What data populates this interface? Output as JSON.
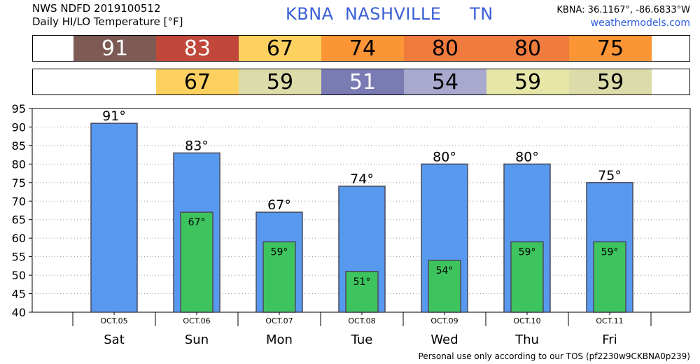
{
  "header": {
    "line1": "NWS NDFD 2019100512",
    "line2": "Daily HI/LO Temperature [°F]",
    "station": "KBNA  NASHVILLE     TN",
    "coords": "KBNA: 36.1167°, -86.6833°W",
    "site": "weathermodels.com"
  },
  "footer": "Personal use only according to our TOS (pf2230w9CKBNA0p239)",
  "hi_strip": [
    {
      "value": "91",
      "color": "#7e5a54"
    },
    {
      "value": "83",
      "color": "#c0473a"
    },
    {
      "value": "67",
      "color": "#fdd160"
    },
    {
      "value": "74",
      "color": "#fb9536"
    },
    {
      "value": "80",
      "color": "#f07b3e"
    },
    {
      "value": "80",
      "color": "#f07b3e"
    },
    {
      "value": "75",
      "color": "#fb9536"
    }
  ],
  "lo_strip": [
    {
      "value": "",
      "color": "#ffffff"
    },
    {
      "value": "67",
      "color": "#fdd160"
    },
    {
      "value": "59",
      "color": "#dcdcaa"
    },
    {
      "value": "51",
      "color": "#7a7bb2"
    },
    {
      "value": "54",
      "color": "#a9a9cf"
    },
    {
      "value": "59",
      "color": "#e6e6a8"
    },
    {
      "value": "59",
      "color": "#dcdcaa"
    }
  ],
  "chart_data": {
    "type": "bar",
    "categories": [
      "Sat",
      "Sun",
      "Mon",
      "Tue",
      "Wed",
      "Thu",
      "Fri"
    ],
    "dates": [
      "OCT.05",
      "OCT.06",
      "OCT.07",
      "OCT.08",
      "OCT.09",
      "OCT.10",
      "OCT.11"
    ],
    "series": [
      {
        "values": [
          91,
          83,
          67,
          74,
          80,
          80,
          75
        ],
        "color": "#5899f0"
      },
      {
        "values": [
          null,
          67,
          59,
          51,
          54,
          59,
          59
        ],
        "color": "#3ec45e"
      }
    ],
    "data_labels_hi": [
      "91°",
      "83°",
      "67°",
      "74°",
      "80°",
      "80°",
      "75°"
    ],
    "data_labels_lo": [
      "",
      "67°",
      "59°",
      "51°",
      "54°",
      "59°",
      "59°"
    ],
    "ylim": [
      40,
      95
    ],
    "yticks": [
      "40",
      "45",
      "50",
      "55",
      "60",
      "65",
      "70",
      "75",
      "80",
      "85",
      "90",
      "95"
    ],
    "grid": true
  }
}
